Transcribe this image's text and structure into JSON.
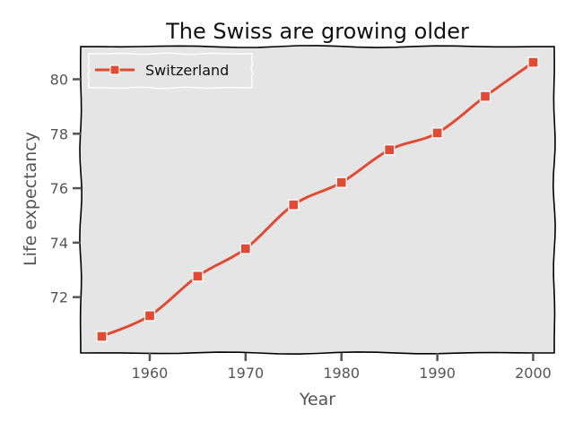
{
  "chart_data": {
    "type": "line",
    "title": "The Swiss are growing older",
    "xlabel": "Year",
    "ylabel": "Life expectancy",
    "x": [
      1955,
      1960,
      1965,
      1970,
      1975,
      1980,
      1985,
      1990,
      1995,
      2000
    ],
    "series": [
      {
        "name": "Switzerland",
        "values": [
          70.56,
          71.32,
          72.77,
          73.78,
          75.39,
          76.21,
          77.41,
          78.03,
          79.37,
          80.62
        ],
        "color": "#e24a33",
        "marker": "square"
      }
    ],
    "xlim": [
      1952.8,
      2002.2
    ],
    "ylim": [
      69.95,
      81.2
    ],
    "xticks": [
      1960,
      1970,
      1980,
      1990,
      2000
    ],
    "yticks": [
      72,
      74,
      76,
      78,
      80
    ],
    "grid": false,
    "legend": "top-left",
    "background": "#e5e5e5",
    "style": "xkcd"
  }
}
